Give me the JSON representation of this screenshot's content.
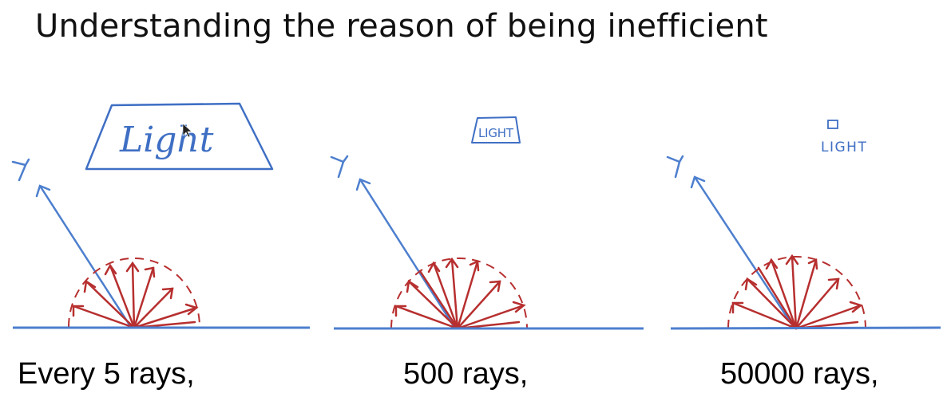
{
  "title": "Understanding the reason of being inefficient",
  "colors": {
    "ground": "#4d7fce",
    "rays": "#b72f2f",
    "eye": "#4d7fce",
    "light": "#3f6fc4"
  },
  "panels": [
    {
      "light_label": "Light",
      "caption": "Every 5 rays,"
    },
    {
      "light_label": "LIGHT",
      "caption": "500 rays,"
    },
    {
      "light_label": "LIGHT",
      "caption": "50000 rays,"
    }
  ]
}
